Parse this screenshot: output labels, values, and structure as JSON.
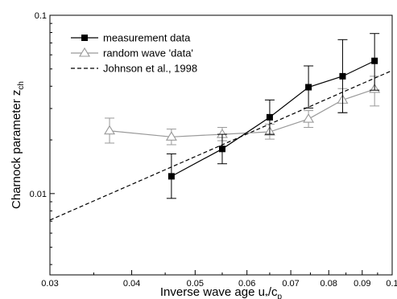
{
  "chart_data": {
    "type": "line",
    "title": "",
    "x_scale": "log",
    "y_scale": "log",
    "xlim": [
      0.03,
      0.1
    ],
    "ylim": [
      0.0035,
      0.1
    ],
    "grid": false,
    "legend_position": "top-left",
    "xlabel": {
      "main": "Inverse wave age u",
      "sub1": "*",
      "mid": "/c",
      "sub2": "p"
    },
    "ylabel": {
      "main": "Charnock parameter z",
      "sub": "ch"
    },
    "x_ticks": [
      {
        "value": 0.03,
        "label": "0.03"
      },
      {
        "value": 0.04,
        "label": "0.04"
      },
      {
        "value": 0.05,
        "label": "0.05"
      },
      {
        "value": 0.06,
        "label": "0.06"
      },
      {
        "value": 0.07,
        "label": "0.07"
      },
      {
        "value": 0.08,
        "label": "0.08"
      },
      {
        "value": 0.09,
        "label": "0.09"
      },
      {
        "value": 0.1,
        "label": "0.1"
      }
    ],
    "y_ticks": [
      {
        "value": 0.01,
        "label": "0.01"
      },
      {
        "value": 0.1,
        "label": "0.1"
      }
    ],
    "series": [
      {
        "name": "measurement data",
        "color": "#000000",
        "marker": "filled-square",
        "points": [
          {
            "x": 0.046,
            "y": 0.0125,
            "low": 0.0094,
            "high": 0.0167
          },
          {
            "x": 0.055,
            "y": 0.0178,
            "low": 0.0147,
            "high": 0.0215
          },
          {
            "x": 0.065,
            "y": 0.0268,
            "low": 0.0215,
            "high": 0.0335
          },
          {
            "x": 0.0745,
            "y": 0.0395,
            "low": 0.0302,
            "high": 0.052
          },
          {
            "x": 0.084,
            "y": 0.0455,
            "low": 0.0284,
            "high": 0.073
          },
          {
            "x": 0.094,
            "y": 0.0555,
            "low": 0.038,
            "high": 0.079
          }
        ]
      },
      {
        "name": "random wave 'data'",
        "color": "#999999",
        "marker": "open-triangle",
        "points": [
          {
            "x": 0.037,
            "y": 0.0225,
            "low": 0.0192,
            "high": 0.0265
          },
          {
            "x": 0.046,
            "y": 0.0208,
            "low": 0.0188,
            "high": 0.023
          },
          {
            "x": 0.055,
            "y": 0.0215,
            "low": 0.0198,
            "high": 0.0235
          },
          {
            "x": 0.065,
            "y": 0.0222,
            "low": 0.0202,
            "high": 0.0245
          },
          {
            "x": 0.0745,
            "y": 0.0262,
            "low": 0.0235,
            "high": 0.0292
          },
          {
            "x": 0.084,
            "y": 0.0335,
            "low": 0.0285,
            "high": 0.0388
          },
          {
            "x": 0.094,
            "y": 0.0385,
            "low": 0.031,
            "high": 0.0455
          }
        ]
      },
      {
        "name": "Johnson et al., 1998",
        "color": "#000000",
        "style": "dashed",
        "points": [
          {
            "x": 0.03,
            "y": 0.0071
          },
          {
            "x": 0.1,
            "y": 0.049
          }
        ]
      }
    ]
  }
}
